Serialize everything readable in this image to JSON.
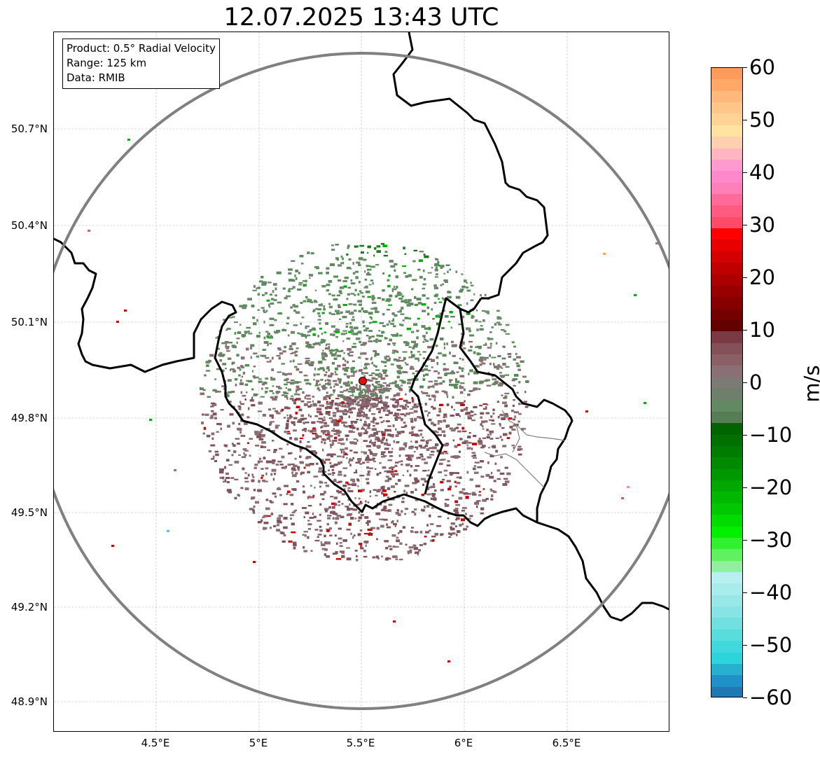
{
  "title": "12.07.2025 13:43 UTC",
  "info": {
    "product": "Product: 0.5° Radial Velocity",
    "range": "Range: 125 km",
    "data": "Data: RMIB"
  },
  "axes": {
    "lat_ticks": [
      "50.7°N",
      "50.4°N",
      "50.1°N",
      "49.8°N",
      "49.5°N",
      "49.2°N",
      "48.9°N"
    ],
    "lon_ticks": [
      "4.5°E",
      "5°E",
      "5.5°E",
      "6°E",
      "6.5°E"
    ]
  },
  "colorbar": {
    "unit": "m/s",
    "ticks": [
      "60",
      "50",
      "40",
      "30",
      "20",
      "10",
      "0",
      "−10",
      "−20",
      "−30",
      "−40",
      "−50",
      "−60"
    ],
    "range": [
      -60,
      60
    ]
  },
  "map": {
    "radar_site": {
      "lon": 5.5,
      "lat": 49.91
    },
    "range_ring_color": "#808080",
    "site_marker_color": "#e01010",
    "border_color": "#000000"
  },
  "colors": {
    "approaching_strong": "#1f77b4",
    "approaching": "#2ddcdc",
    "green": "#00b000",
    "zero_green": "#5b8a5b",
    "zero_mauve": "#8a6e74",
    "receding": "#d00000",
    "receding_pink": "#ff80c0",
    "receding_peach": "#ffa060"
  }
}
